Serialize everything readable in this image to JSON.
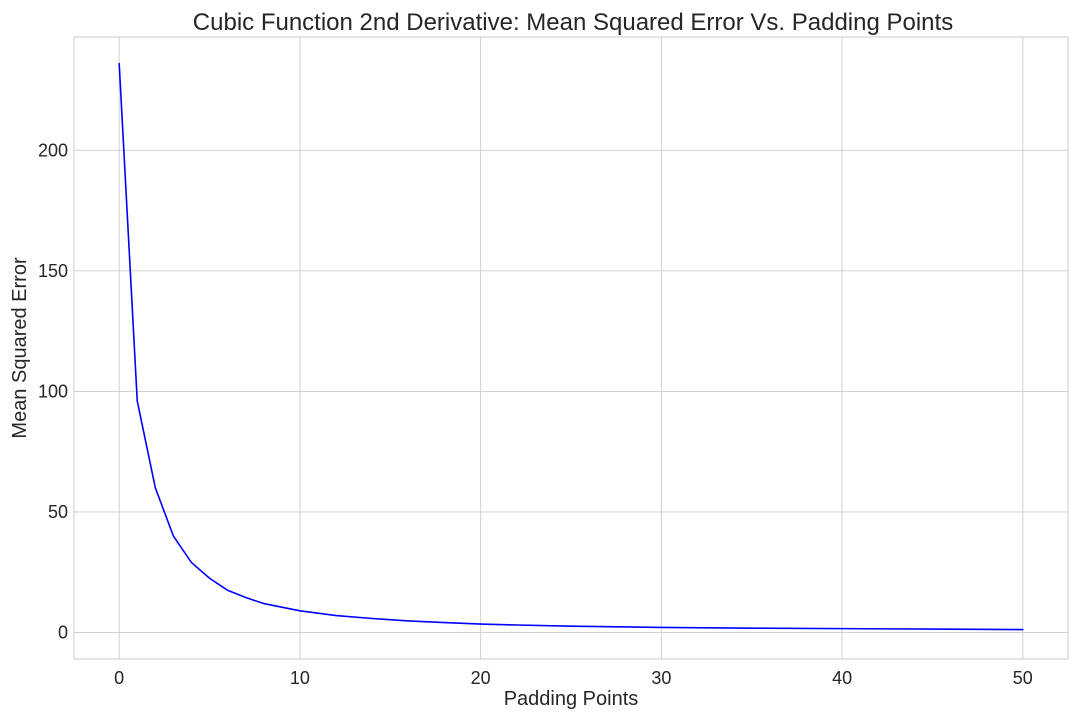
{
  "chart_data": {
    "type": "line",
    "title": "Cubic Function 2nd Derivative: Mean Squared Error Vs. Padding Points",
    "xlabel": "Padding Points",
    "ylabel": "Mean Squared Error",
    "xlim": [
      -2.5,
      52.5
    ],
    "ylim": [
      -11,
      247
    ],
    "xticks": [
      0,
      10,
      20,
      30,
      40,
      50
    ],
    "yticks": [
      0,
      50,
      100,
      150,
      200
    ],
    "xtick_labels": [
      "0",
      "10",
      "20",
      "30",
      "40",
      "50"
    ],
    "ytick_labels": [
      "0",
      "50",
      "100",
      "150",
      "200"
    ],
    "grid": true,
    "legend": false,
    "series": [
      {
        "color": "#0000ff",
        "x": [
          0,
          1,
          2,
          3,
          4,
          5,
          6,
          7,
          8,
          9,
          10,
          12,
          14,
          16,
          18,
          20,
          22,
          25,
          30,
          35,
          40,
          45,
          50
        ],
        "y": [
          236,
          96,
          60,
          40,
          29,
          22.5,
          17.5,
          14.5,
          12,
          10.5,
          9,
          7,
          5.8,
          4.8,
          4.1,
          3.5,
          3.1,
          2.6,
          2.1,
          1.8,
          1.6,
          1.4,
          1.2
        ]
      }
    ]
  }
}
